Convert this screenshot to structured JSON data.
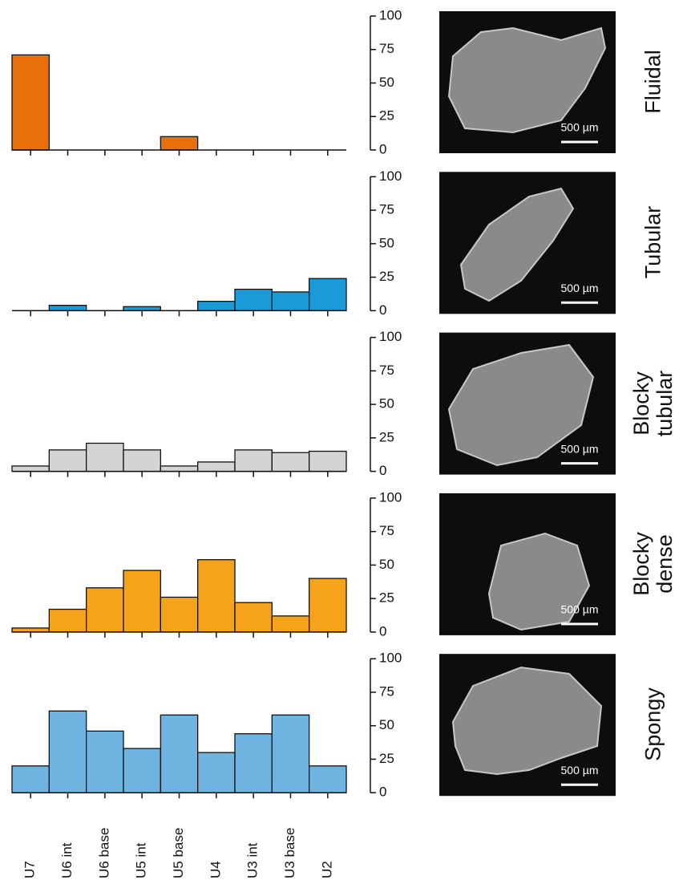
{
  "chart_data": [
    {
      "type": "bar",
      "title": "Fluidal",
      "image_scale": "500 µm",
      "values": [
        71,
        0,
        0,
        0,
        10,
        0,
        0,
        0,
        0
      ],
      "color": "#e8700a",
      "ylim": [
        0,
        100
      ],
      "yticks": [
        0,
        25,
        50,
        75,
        100
      ]
    },
    {
      "type": "bar",
      "title": "Tubular",
      "image_scale": "500 µm",
      "values": [
        0,
        4,
        0,
        3,
        0,
        7,
        16,
        14,
        24
      ],
      "color": "#1a9ad6",
      "ylim": [
        0,
        100
      ],
      "yticks": [
        0,
        25,
        50,
        75,
        100
      ]
    },
    {
      "type": "bar",
      "title": "Blocky tubular",
      "image_scale": "500 µm",
      "values": [
        4,
        16,
        21,
        16,
        4,
        7,
        16,
        14,
        15
      ],
      "color": "#d4d4d4",
      "ylim": [
        0,
        100
      ],
      "yticks": [
        0,
        25,
        50,
        75,
        100
      ]
    },
    {
      "type": "bar",
      "title": "Blocky dense",
      "image_scale": "500 µm",
      "values": [
        3,
        17,
        33,
        46,
        26,
        54,
        22,
        12,
        40
      ],
      "color": "#f5a31a",
      "ylim": [
        0,
        100
      ],
      "yticks": [
        0,
        25,
        50,
        75,
        100
      ]
    },
    {
      "type": "bar",
      "title": "Spongy",
      "image_scale": "500 µm",
      "categories": [
        "U7",
        "U6 int",
        "U6 base",
        "U5 int",
        "U5 base",
        "U4",
        "U3 int",
        "U3 base",
        "U2"
      ],
      "values": [
        20,
        61,
        46,
        33,
        58,
        30,
        44,
        58,
        20
      ],
      "color": "#6fb3e0",
      "ylim": [
        0,
        100
      ],
      "yticks": [
        0,
        25,
        50,
        75,
        100
      ]
    }
  ]
}
